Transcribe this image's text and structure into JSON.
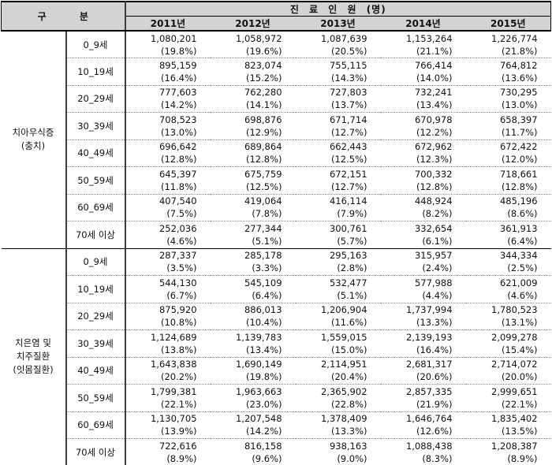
{
  "colors": {
    "header_bg": "#d3d3d3",
    "border": "#000000",
    "divider_dotted": "#8a8a8a",
    "thick_vertical": "#3c3c3c"
  },
  "table": {
    "corner_header": "구 분",
    "patients_header": "진 료 인 원 (명)",
    "year_headers": [
      "2011년",
      "2012년",
      "2013년",
      "2014년",
      "2015년"
    ],
    "groups": [
      {
        "label_lines": [
          "치아우식증",
          "(충치)"
        ],
        "rows": [
          {
            "age": "0_9세",
            "values": [
              "1,080,201",
              "1,058,972",
              "1,087,639",
              "1,153,264",
              "1,226,774"
            ],
            "percents": [
              "(19.8%)",
              "(19.6%)",
              "(20.5%)",
              "(21.1%)",
              "(21.8%)"
            ]
          },
          {
            "age": "10_19세",
            "values": [
              "895,159",
              "823,074",
              "755,115",
              "766,414",
              "764,812"
            ],
            "percents": [
              "(16.4%)",
              "(15.2%)",
              "(14.3%)",
              "(14.0%)",
              "(13.6%)"
            ]
          },
          {
            "age": "20_29세",
            "values": [
              "777,603",
              "762,280",
              "727,803",
              "732,241",
              "730,295"
            ],
            "percents": [
              "(14.2%)",
              "(14.1%)",
              "(13.7%)",
              "(13.4%)",
              "(13.0%)"
            ]
          },
          {
            "age": "30_39세",
            "values": [
              "708,523",
              "698,876",
              "671,714",
              "670,978",
              "658,397"
            ],
            "percents": [
              "(13.0%)",
              "(12.9%)",
              "(12.7%)",
              "(12.2%)",
              "(11.7%)"
            ]
          },
          {
            "age": "40_49세",
            "values": [
              "696,642",
              "689,864",
              "662,443",
              "672,962",
              "672,422"
            ],
            "percents": [
              "(12.8%)",
              "(12.8%)",
              "(12.5%)",
              "(12.3%)",
              "(12.0%)"
            ]
          },
          {
            "age": "50_59세",
            "values": [
              "645,397",
              "675,759",
              "672,151",
              "700,332",
              "718,661"
            ],
            "percents": [
              "(11.8%)",
              "(12.5%)",
              "(12.7%)",
              "(12.8%)",
              "(12.8%)"
            ]
          },
          {
            "age": "60_69세",
            "values": [
              "407,540",
              "419,064",
              "416,114",
              "448,924",
              "485,196"
            ],
            "percents": [
              "(7.5%)",
              "(7.8%)",
              "(7.9%)",
              "(8.2%)",
              "(8.6%)"
            ]
          },
          {
            "age": "70세 이상",
            "values": [
              "252,036",
              "277,344",
              "300,761",
              "332,654",
              "361,913"
            ],
            "percents": [
              "(4.6%)",
              "(5.1%)",
              "(5.7%)",
              "(6.1%)",
              "(6.4%)"
            ]
          }
        ]
      },
      {
        "label_lines": [
          "치은염 및",
          "치주질환",
          "(잇몸질환)"
        ],
        "rows": [
          {
            "age": "0_9세",
            "values": [
              "287,337",
              "285,178",
              "295,163",
              "315,957",
              "344,334"
            ],
            "percents": [
              "(3.5%)",
              "(3.3%)",
              "(2.8%)",
              "(2.4%)",
              "(2.5%)"
            ]
          },
          {
            "age": "10_19세",
            "values": [
              "544,130",
              "545,109",
              "532,477",
              "577,988",
              "621,009"
            ],
            "percents": [
              "(6.7%)",
              "(6.4%)",
              "(5.1%)",
              "(4.4%)",
              "(4.6%)"
            ]
          },
          {
            "age": "20_29세",
            "values": [
              "875,920",
              "886,013",
              "1,206,904",
              "1,737,994",
              "1,780,523"
            ],
            "percents": [
              "(10.8%)",
              "(10.4%)",
              "(11.6%)",
              "(13.3%)",
              "(13.1%)"
            ]
          },
          {
            "age": "30_39세",
            "values": [
              "1,124,689",
              "1,139,783",
              "1,559,015",
              "2,139,193",
              "2,099,278"
            ],
            "percents": [
              "(13.8%)",
              "(13.4%)",
              "(15.0%)",
              "(16.4%)",
              "(15.4%)"
            ]
          },
          {
            "age": "40_49세",
            "values": [
              "1,643,838",
              "1,690,149",
              "2,114,951",
              "2,681,317",
              "2,714,072"
            ],
            "percents": [
              "(20.2%)",
              "(19.8%)",
              "(20.4%)",
              "(20.6%)",
              "(20.0%)"
            ]
          },
          {
            "age": "50_59세",
            "values": [
              "1,799,381",
              "1,963,663",
              "2,365,902",
              "2,857,335",
              "2,999,651"
            ],
            "percents": [
              "(22.1%)",
              "(23.0%)",
              "(22.8%)",
              "(21.9%)",
              "(22.1%)"
            ]
          },
          {
            "age": "60_69세",
            "values": [
              "1,130,705",
              "1,207,548",
              "1,378,409",
              "1,646,764",
              "1,835,402"
            ],
            "percents": [
              "(13.9%)",
              "(14.2%)",
              "(13.3%)",
              "(12.6%)",
              "(13.5%)"
            ]
          },
          {
            "age": "70세 이상",
            "values": [
              "722,616",
              "816,158",
              "938,163",
              "1,088,438",
              "1,208,387"
            ],
            "percents": [
              "(8.9%)",
              "(9.6%)",
              "(9.0%)",
              "(8.3%)",
              "(8.9%)"
            ]
          }
        ]
      }
    ]
  }
}
